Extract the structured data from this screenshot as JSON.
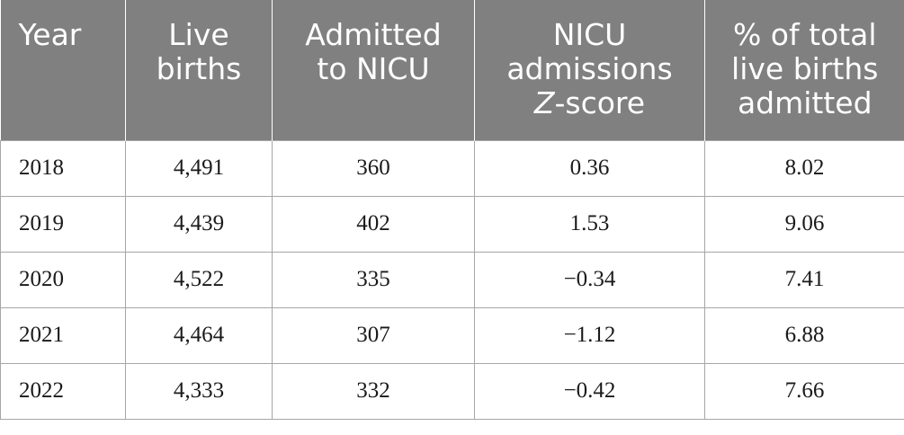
{
  "table": {
    "headers": [
      {
        "lines": [
          "Year"
        ]
      },
      {
        "lines": [
          "Live",
          "births"
        ]
      },
      {
        "lines": [
          "Admitted",
          "to NICU"
        ]
      },
      {
        "lines": [
          "NICU",
          "admissions"
        ],
        "italic_part": "Z",
        "tail": "-score"
      },
      {
        "lines": [
          "% of total",
          "live births",
          "admitted"
        ]
      }
    ],
    "rows": [
      [
        "2018",
        "4,491",
        "360",
        "0.36",
        "8.02"
      ],
      [
        "2019",
        "4,439",
        "402",
        "1.53",
        "9.06"
      ],
      [
        "2020",
        "4,522",
        "335",
        "−0.34",
        "7.41"
      ],
      [
        "2021",
        "4,464",
        "307",
        "−1.12",
        "6.88"
      ],
      [
        "2022",
        "4,333",
        "332",
        "−0.42",
        "7.66"
      ]
    ]
  },
  "colors": {
    "header_bg": "#808080",
    "header_text": "#ffffff",
    "grid": "#a6a6a6"
  }
}
